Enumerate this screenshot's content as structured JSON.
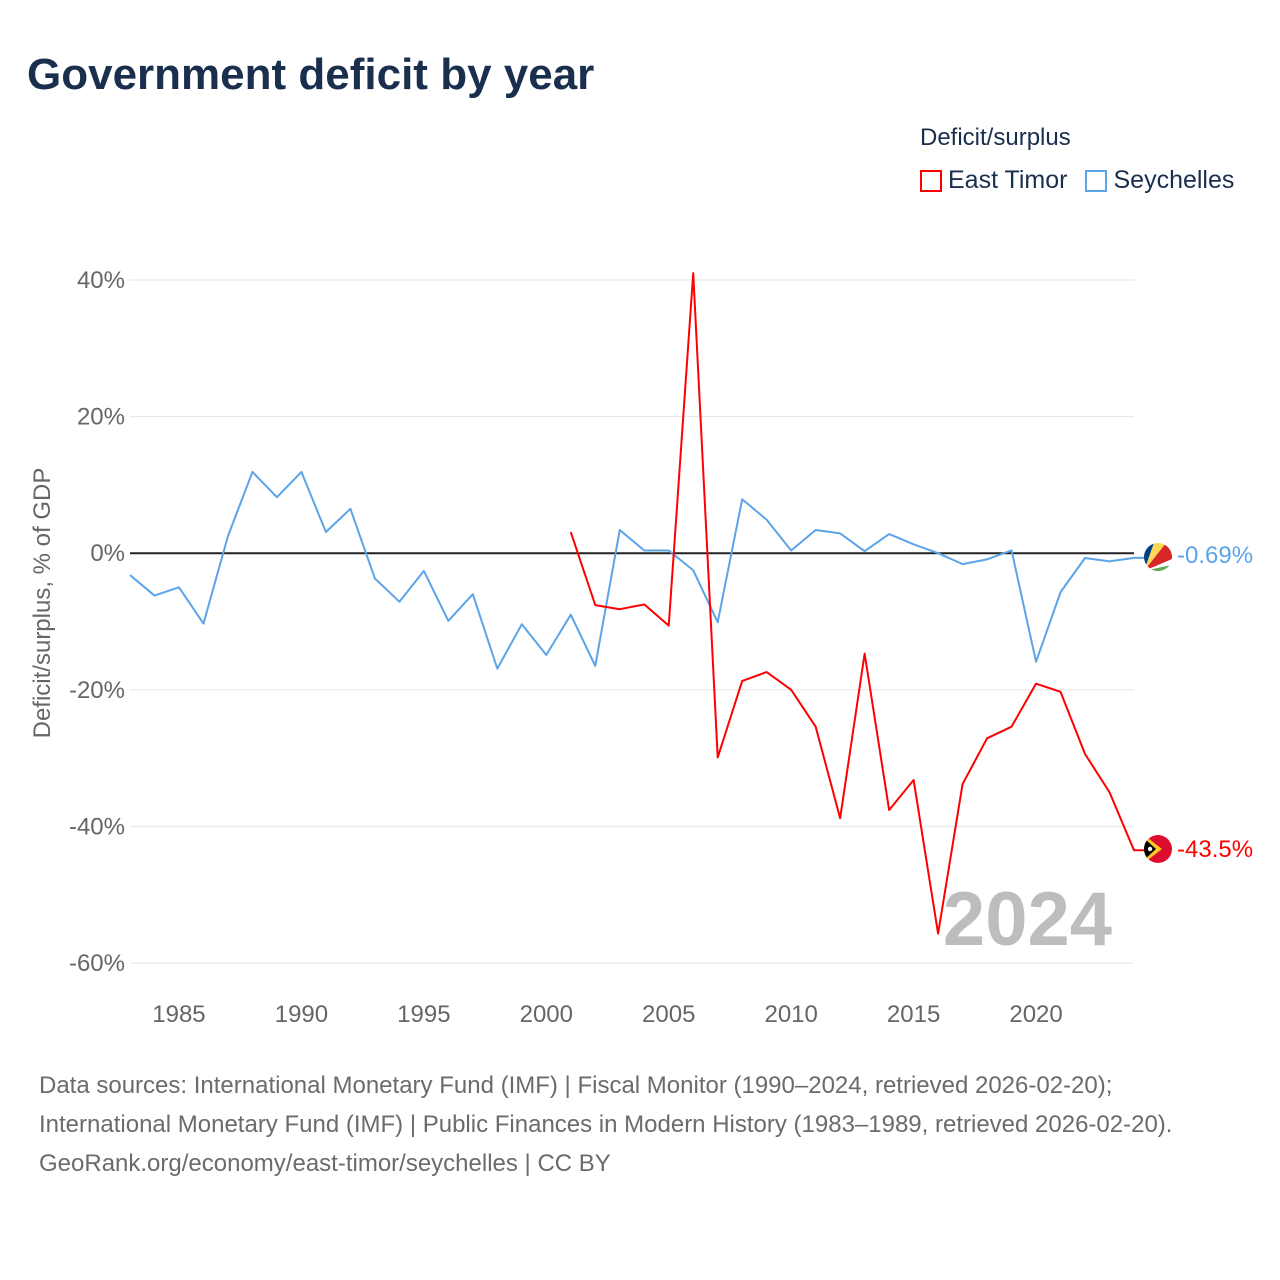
{
  "title": "Government deficit by year",
  "legend": {
    "title": "Deficit/surplus"
  },
  "footer": {
    "sources": "Data sources: International Monetary Fund (IMF) | Fiscal Monitor (1990–2024, retrieved 2026-02-20); International Monetary Fund (IMF) | Public Finances in Modern History (1983–1989, retrieved 2026-02-20).",
    "credit": "GeoRank.org/economy/east-timor/seychelles | CC BY"
  },
  "chart_data": {
    "type": "line",
    "title": "Government deficit by year",
    "ylabel": "Deficit/surplus, % of GDP",
    "xlabel": "",
    "xlim": [
      1983,
      2024
    ],
    "ylim": [
      -60,
      40
    ],
    "yticks": [
      40,
      20,
      0,
      -20,
      -40,
      -60
    ],
    "ytick_labels": [
      "40%",
      "20%",
      "0%",
      "-20%",
      "-40%",
      "-60%"
    ],
    "xticks": [
      1985,
      1990,
      1995,
      2000,
      2005,
      2010,
      2015,
      2020
    ],
    "xtick_labels": [
      "1985",
      "1990",
      "1995",
      "2000",
      "2005",
      "2010",
      "2015",
      "2020"
    ],
    "year_watermark": "2024",
    "legend_position": "top-right",
    "series": [
      {
        "name": "East Timor",
        "color": "#ff0000",
        "end_label": "-43.5%",
        "start_year": 2001,
        "values": [
          3.1,
          -7.6,
          -8.2,
          -7.5,
          -10.6,
          41.0,
          -29.9,
          -18.7,
          -17.4,
          -20.0,
          -25.4,
          -38.8,
          -14.7,
          -37.6,
          -33.2,
          -55.7,
          -33.8,
          -27.1,
          -25.4,
          -19.1,
          -20.3,
          -29.4,
          -35.0,
          -43.5
        ]
      },
      {
        "name": "Seychelles",
        "color": "#5ba4e8",
        "end_label": "-0.69%",
        "start_year": 1983,
        "values": [
          -3.2,
          -6.2,
          -5.0,
          -10.3,
          2.5,
          11.9,
          8.2,
          11.9,
          3.1,
          6.5,
          -3.7,
          -7.1,
          -2.6,
          -9.9,
          -6.0,
          -16.9,
          -10.4,
          -14.9,
          -9.0,
          -16.5,
          3.4,
          0.4,
          0.4,
          -2.5,
          -10.1,
          7.9,
          4.9,
          0.4,
          3.4,
          2.9,
          0.3,
          2.8,
          1.3,
          0.0,
          -1.6,
          -0.9,
          0.4,
          -15.9,
          -5.7,
          -0.7,
          -1.2,
          -0.69
        ]
      }
    ]
  }
}
